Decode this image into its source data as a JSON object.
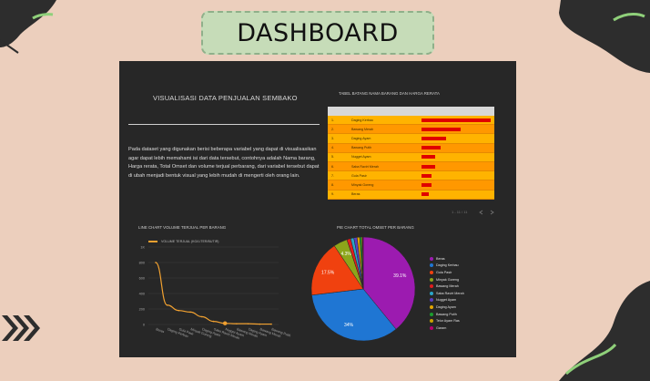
{
  "header": {
    "title": "DASHBOARD"
  },
  "dashboard": {
    "title": "VISUALISASI DATA PENJUALAN SEMBAKO",
    "description": "Pada dataset yang digunakan berisi beberapa variabel yang dapat di visualisasikan agar dapat lebih memahami isi dari data tersebut, contohnya adalah Nama barang, Harga rerata, Total Omset dan volume terjual perbarang, dari variabel tersebut dapat di ubah menjadi bentuk visual yang lebih mudah di mengerti oleh orang lain.",
    "table": {
      "title": "TABEL BATANG NAMA BARANG DAN HARGA RERATA",
      "pager": "1 - 11 / 11",
      "rows": [
        {
          "no": "1.",
          "name": "Daging Kerbau",
          "value": 1.0
        },
        {
          "no": "2.",
          "name": "Bawang Merah",
          "value": 0.56
        },
        {
          "no": "3.",
          "name": "Daging Ayam",
          "value": 0.36
        },
        {
          "no": "4.",
          "name": "Bawang Putih",
          "value": 0.28
        },
        {
          "no": "5.",
          "name": "Nugget Ayam",
          "value": 0.2
        },
        {
          "no": "6.",
          "name": "Saba Ravirt Merah",
          "value": 0.2
        },
        {
          "no": "7.",
          "name": "Gula Pasir",
          "value": 0.15
        },
        {
          "no": "8.",
          "name": "Minyak Goreng",
          "value": 0.14
        },
        {
          "no": "9.",
          "name": "Beras",
          "value": 0.1
        }
      ]
    },
    "line_chart": {
      "title": "LINE CHART VOLUME TERJUAL PER BARANG",
      "legend": "VOLUME TERJUAL (KG/LITER/BUTIR)",
      "y_ticks": [
        "1K",
        "800",
        "600",
        "400",
        "200",
        "0"
      ],
      "x_labels": [
        "Beras",
        "Daging Kerbau",
        "Gula Pasir",
        "Minyak Goreng",
        "Daging Ayam",
        "Saba Ravirt Merah",
        "Nugget Ayam",
        "Bawang Merah",
        "Daging Ayam",
        "Bawang Merah",
        "Bawang Putih"
      ]
    },
    "pie_chart": {
      "title": "PIE CHART TOTAL OMSET PER BARANG",
      "slices": [
        {
          "label": "Beras",
          "value": 39.1,
          "color": "#9c1bb0",
          "shown": "39.1%"
        },
        {
          "label": "Daging Kerbau",
          "value": 34,
          "color": "#1f76d3",
          "shown": "34%"
        },
        {
          "label": "Gula Pasir",
          "value": 17.5,
          "color": "#f0410f",
          "shown": "17.5%"
        },
        {
          "label": "Minyak Goreng",
          "value": 4.3,
          "color": "#8da51a",
          "shown": "4.3%"
        },
        {
          "label": "Bawang Merah",
          "value": 1.2,
          "color": "#e01d1d",
          "shown": ""
        },
        {
          "label": "Saba Ravirt Merah",
          "value": 1.0,
          "color": "#2aa5c8",
          "shown": ""
        },
        {
          "label": "Nugget Ayam",
          "value": 1.0,
          "color": "#5a3fc0",
          "shown": ""
        },
        {
          "label": "Daging Ayam",
          "value": 0.8,
          "color": "#e2a400",
          "shown": ""
        },
        {
          "label": "Bawang Putih",
          "value": 0.6,
          "color": "#1c9e2e",
          "shown": ""
        },
        {
          "label": "Telor Ayam Ras",
          "value": 0.3,
          "color": "#c9a100",
          "shown": ""
        },
        {
          "label": "Garam",
          "value": 0.2,
          "color": "#b5006d",
          "shown": ""
        }
      ]
    }
  },
  "chart_data": [
    {
      "type": "line",
      "title": "LINE CHART VOLUME TERJUAL PER BARANG",
      "series": [
        {
          "name": "VOLUME TERJUAL (KG/LITER/BUTIR)",
          "values": [
            800,
            250,
            180,
            160,
            100,
            40,
            15,
            10,
            10,
            5,
            5
          ]
        }
      ],
      "ylim": [
        0,
        1000
      ]
    },
    {
      "type": "pie",
      "title": "PIE CHART TOTAL OMSET PER BARANG",
      "categories": [
        "Beras",
        "Daging Kerbau",
        "Gula Pasir",
        "Minyak Goreng"
      ],
      "values": [
        39.1,
        34,
        17.5,
        4.3
      ]
    }
  ]
}
